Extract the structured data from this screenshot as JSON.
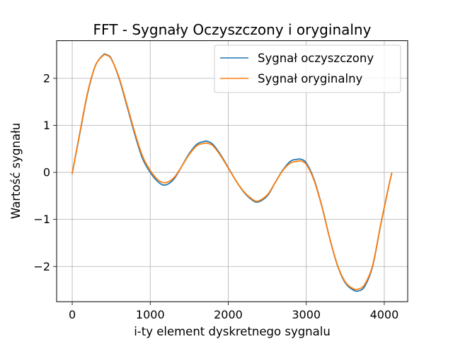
{
  "chart_data": {
    "type": "line",
    "title": "FFT - Sygnały Oczyszczony i oryginalny",
    "xlabel": "i-ty element dyskretnego sygnalu",
    "ylabel": "Wartość sygnału",
    "xlim": [
      -200,
      4300
    ],
    "ylim": [
      -2.75,
      2.8
    ],
    "xticks": [
      0,
      1000,
      2000,
      3000,
      4000
    ],
    "xtick_labels": [
      "0",
      "1000",
      "2000",
      "3000",
      "4000"
    ],
    "yticks": [
      -2,
      -1,
      0,
      1,
      2
    ],
    "ytick_labels": [
      "−2",
      "−1",
      "0",
      "1",
      "2"
    ],
    "grid": true,
    "legend_position": "top-right",
    "series": [
      {
        "name": "Sygnał oczyszczony",
        "color": "#1f77b4",
        "x": [
          0,
          100,
          200,
          300,
          400,
          440,
          500,
          600,
          700,
          800,
          900,
          1000,
          1100,
          1190,
          1300,
          1400,
          1500,
          1600,
          1700,
          1730,
          1800,
          1900,
          2000,
          2100,
          2200,
          2300,
          2380,
          2500,
          2600,
          2700,
          2800,
          2900,
          2930,
          3000,
          3100,
          3200,
          3300,
          3400,
          3500,
          3600,
          3670,
          3750,
          3850,
          3950,
          4050,
          4095
        ],
        "y": [
          -0.02,
          0.85,
          1.7,
          2.28,
          2.5,
          2.5,
          2.42,
          2.0,
          1.42,
          0.82,
          0.3,
          0.0,
          -0.2,
          -0.27,
          -0.15,
          0.12,
          0.4,
          0.6,
          0.66,
          0.66,
          0.6,
          0.38,
          0.1,
          -0.18,
          -0.42,
          -0.58,
          -0.63,
          -0.5,
          -0.22,
          0.05,
          0.24,
          0.28,
          0.28,
          0.2,
          -0.15,
          -0.72,
          -1.4,
          -1.98,
          -2.35,
          -2.5,
          -2.52,
          -2.42,
          -2.0,
          -1.15,
          -0.35,
          -0.02
        ]
      },
      {
        "name": "Sygnał oryginalny",
        "color": "#ff7f0e",
        "x": [
          0,
          100,
          200,
          300,
          400,
          440,
          500,
          600,
          700,
          800,
          900,
          1000,
          1100,
          1190,
          1300,
          1400,
          1500,
          1600,
          1700,
          1730,
          1800,
          1900,
          2000,
          2100,
          2200,
          2300,
          2380,
          2500,
          2600,
          2700,
          2800,
          2900,
          2930,
          3000,
          3100,
          3200,
          3300,
          3400,
          3500,
          3600,
          3670,
          3750,
          3850,
          3950,
          4050,
          4095
        ],
        "y": [
          -0.02,
          0.87,
          1.72,
          2.28,
          2.49,
          2.49,
          2.41,
          2.02,
          1.45,
          0.86,
          0.35,
          0.04,
          -0.16,
          -0.22,
          -0.12,
          0.12,
          0.38,
          0.57,
          0.62,
          0.62,
          0.57,
          0.36,
          0.09,
          -0.18,
          -0.41,
          -0.56,
          -0.61,
          -0.48,
          -0.22,
          0.04,
          0.2,
          0.24,
          0.24,
          0.17,
          -0.17,
          -0.73,
          -1.4,
          -1.97,
          -2.33,
          -2.47,
          -2.48,
          -2.38,
          -1.98,
          -1.14,
          -0.35,
          -0.02
        ]
      }
    ]
  }
}
